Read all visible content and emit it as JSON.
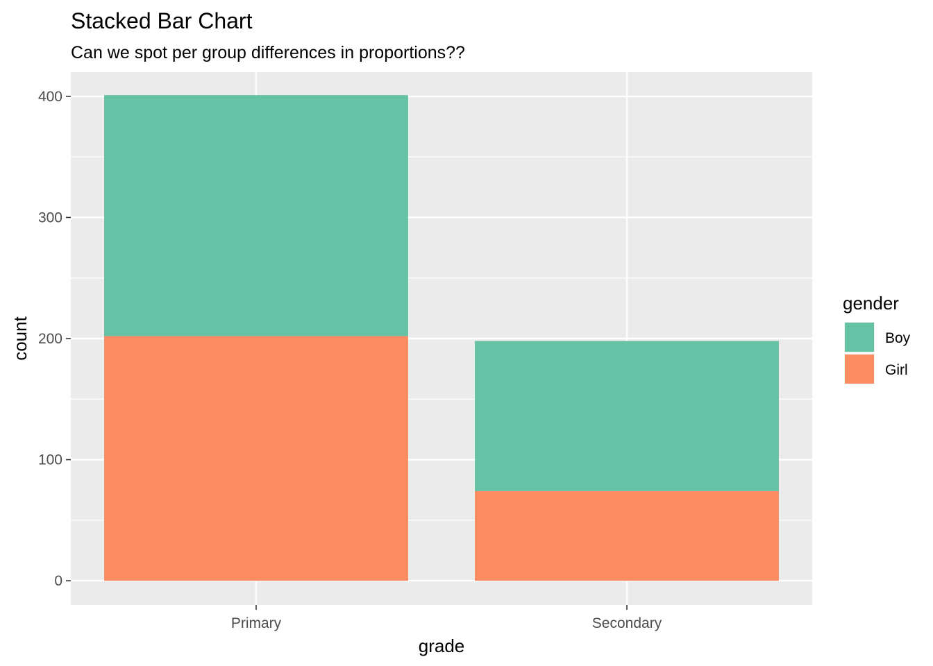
{
  "chart_data": {
    "type": "bar",
    "stacked": true,
    "title": "Stacked Bar Chart",
    "subtitle": "Can we spot per group differences in proportions??",
    "xlabel": "grade",
    "ylabel": "count",
    "categories": [
      "Primary",
      "Secondary"
    ],
    "series": [
      {
        "name": "Girl",
        "values": [
          202,
          74
        ],
        "color": "#FC8D62"
      },
      {
        "name": "Boy",
        "values": [
          199,
          124
        ],
        "color": "#66C2A5"
      }
    ],
    "ylim": [
      -20,
      420
    ],
    "yticks": [
      0,
      100,
      200,
      300,
      400
    ],
    "ytick_labels": [
      "0",
      "100",
      "200",
      "300",
      "400"
    ],
    "grid": true,
    "legend": {
      "title": "gender",
      "position": "right",
      "entries": [
        {
          "label": "Boy",
          "color": "#66C2A5"
        },
        {
          "label": "Girl",
          "color": "#FC8D62"
        }
      ]
    },
    "panel_background": "#EBEBEB",
    "grid_color": "#FFFFFF"
  }
}
